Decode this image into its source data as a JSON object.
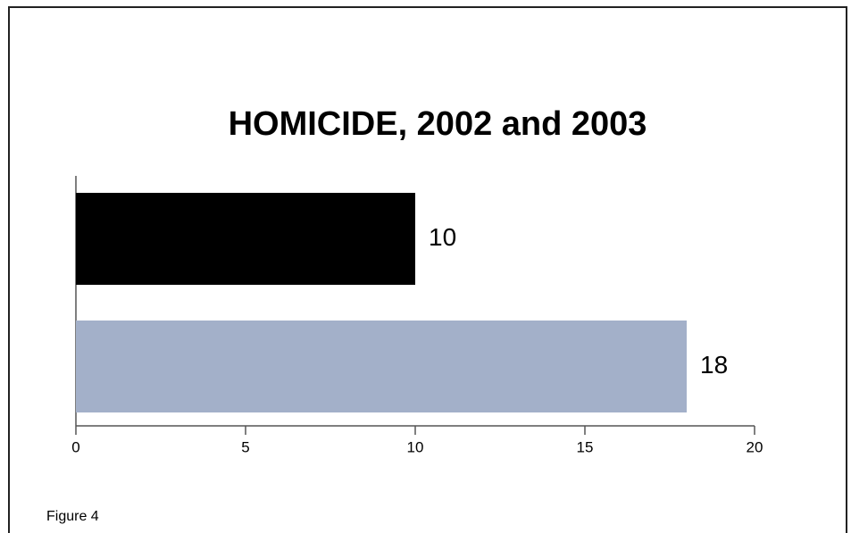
{
  "chart_data": {
    "type": "bar",
    "orientation": "horizontal",
    "title": "HOMICIDE, 2002 and 2003",
    "values": [
      10,
      18
    ],
    "colors": [
      "#000000",
      "#a3b0c9"
    ],
    "xlim": [
      0,
      20
    ],
    "xticks": [
      0,
      5,
      10,
      15,
      20
    ],
    "grid": false
  },
  "caption": "Figure 4"
}
